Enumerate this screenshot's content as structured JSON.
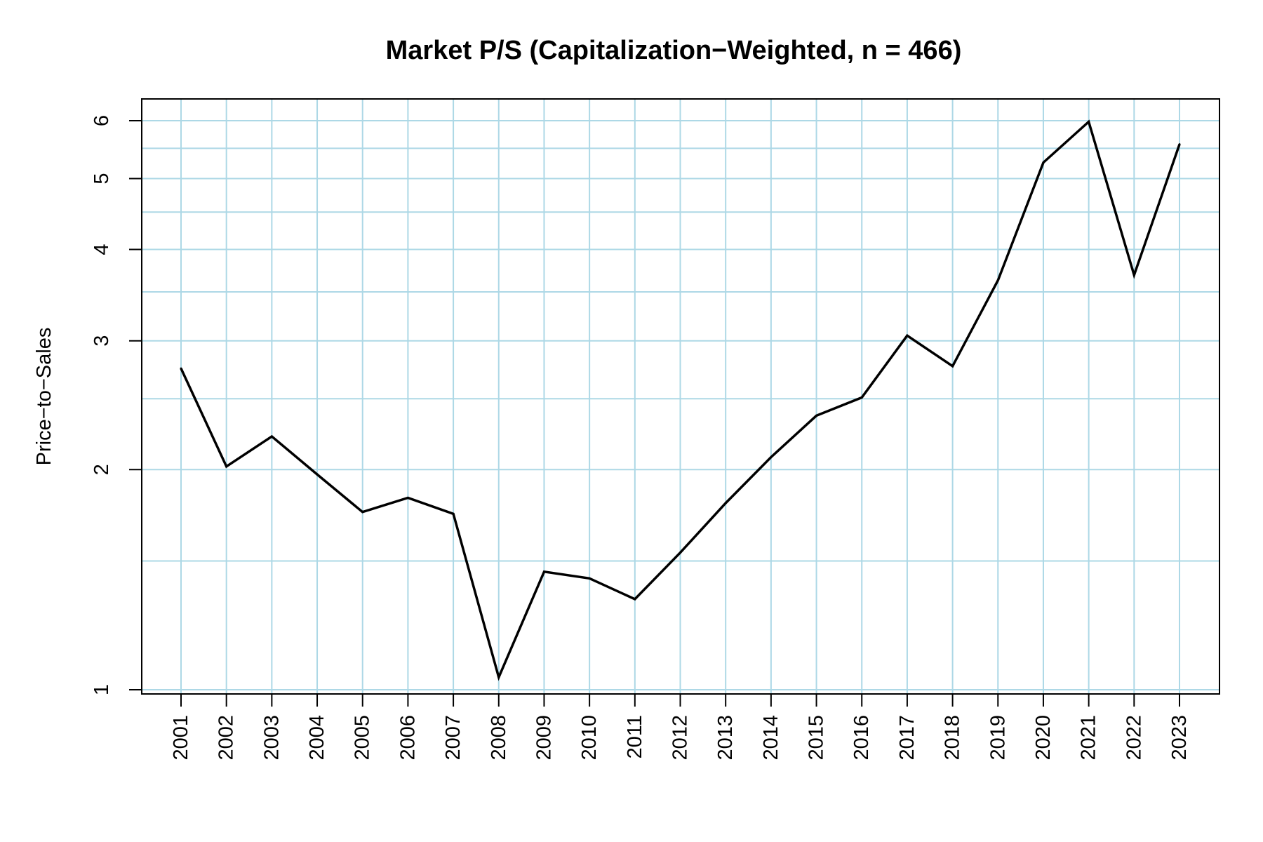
{
  "chart_data": {
    "type": "line",
    "title": "Market P/S (Capitalization−Weighted, n = 466)",
    "xlabel": "",
    "ylabel": "Price−to−Sales",
    "y_scale": "log",
    "ylim": [
      1,
      6
    ],
    "y_ticks": [
      1,
      2,
      3,
      4,
      5,
      6
    ],
    "y_tick_labels": [
      "1",
      "2",
      "3",
      "4",
      "5",
      "6"
    ],
    "y_minor_gridlines": [
      1.5,
      2.5,
      3.5,
      4.5,
      5.5
    ],
    "grid": true,
    "categories": [
      "2001",
      "2002",
      "2003",
      "2004",
      "2005",
      "2006",
      "2007",
      "2008",
      "2009",
      "2010",
      "2011",
      "2012",
      "2013",
      "2014",
      "2015",
      "2016",
      "2017",
      "2018",
      "2019",
      "2020",
      "2021",
      "2022",
      "2023"
    ],
    "series": [
      {
        "name": "Market P/S",
        "values": [
          2.75,
          2.02,
          2.22,
          1.97,
          1.75,
          1.83,
          1.74,
          1.04,
          1.45,
          1.42,
          1.33,
          1.54,
          1.8,
          2.08,
          2.37,
          2.51,
          3.05,
          2.77,
          3.63,
          5.26,
          5.98,
          3.69,
          5.57
        ]
      }
    ],
    "colors": {
      "line": "#000000",
      "grid": "#add8e6",
      "frame": "#000000"
    }
  }
}
